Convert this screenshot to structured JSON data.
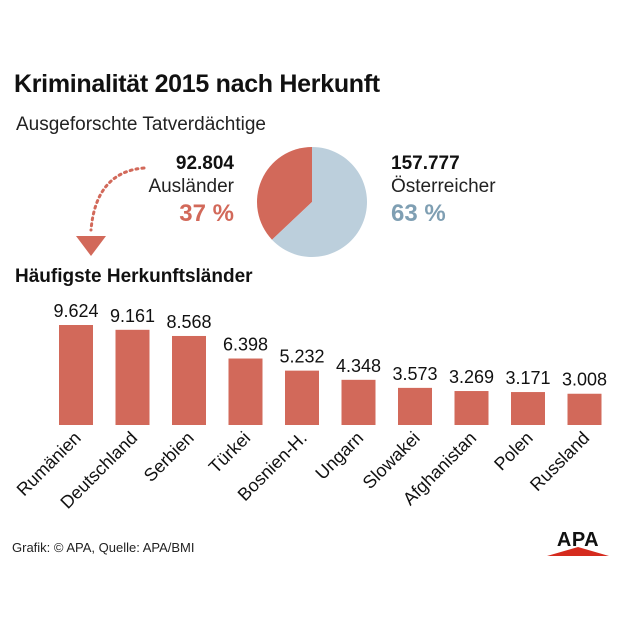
{
  "header": {
    "title": "Kriminalität 2015 nach Herkunft",
    "subtitle": "Ausgeforschte Tatverdächtige"
  },
  "summary": {
    "foreigners": {
      "count": "92.804",
      "label": "Ausländer",
      "percent": "37 %"
    },
    "austrians": {
      "count": "157.777",
      "label": "Österreicher",
      "percent": "63 %"
    }
  },
  "section_title": "Häufigste Herkunftsländer",
  "footer": {
    "source": "Grafik: © APA, Quelle: APA/BMI",
    "logo": "APA"
  },
  "colors": {
    "primary": "#d2695a",
    "secondary": "#bccfdc",
    "text": "#111111"
  },
  "chart_data": [
    {
      "type": "pie",
      "categories": [
        "Ausländer",
        "Österreicher"
      ],
      "values": [
        92804,
        157777
      ],
      "percent_labels": [
        "37 %",
        "63 %"
      ],
      "colors": [
        "#d2695a",
        "#bccfdc"
      ]
    },
    {
      "type": "bar",
      "title": "Häufigste Herkunftsländer",
      "categories": [
        "Rumänien",
        "Deutschland",
        "Serbien",
        "Türkei",
        "Bosnien-H.",
        "Ungarn",
        "Slowakei",
        "Afghanistan",
        "Polen",
        "Russland"
      ],
      "values": [
        9624,
        9161,
        8568,
        6398,
        5232,
        4348,
        3573,
        3269,
        3171,
        3008
      ],
      "value_labels": [
        "9.624",
        "9.161",
        "8.568",
        "6.398",
        "5.232",
        "4.348",
        "3.573",
        "3.269",
        "3.171",
        "3.008"
      ],
      "ylim": [
        0,
        9624
      ],
      "color": "#d2695a"
    }
  ]
}
